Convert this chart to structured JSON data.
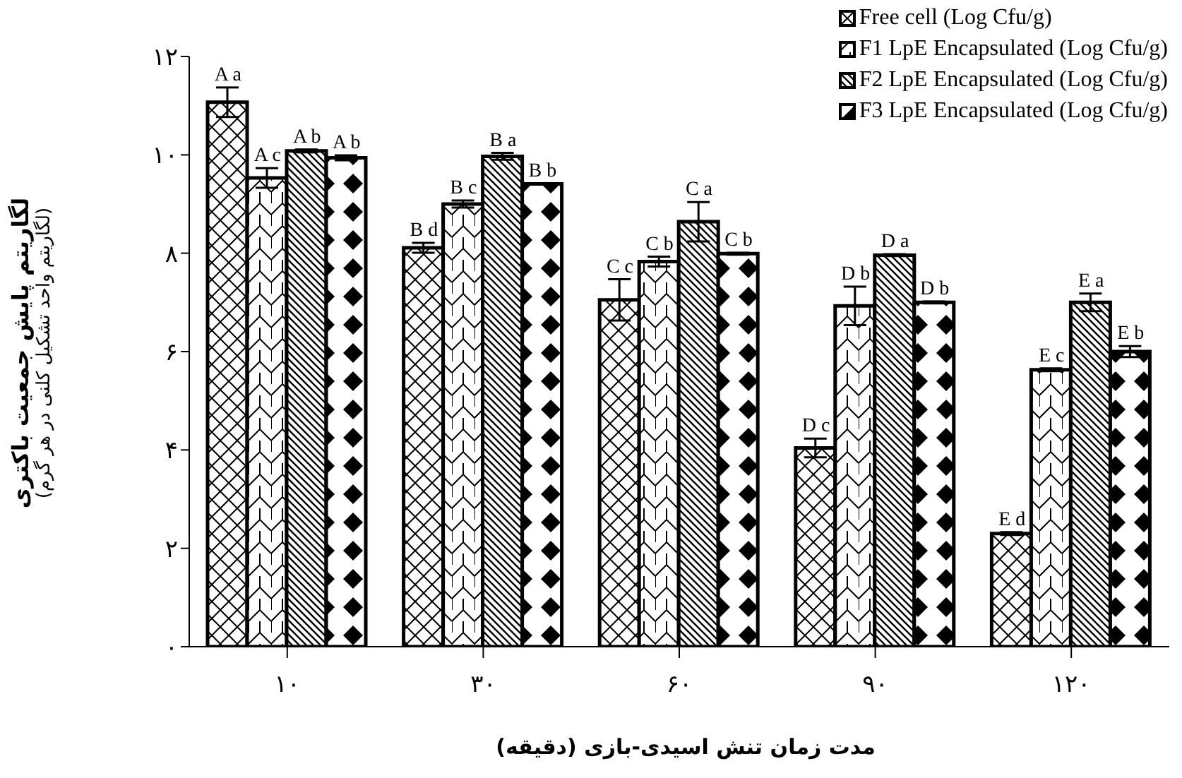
{
  "chart_data": {
    "type": "bar",
    "xlabel": "مدت زمان تنش اسیدی-بازی (دقیقه)",
    "ylabel": "لگاریتم پایش جمعیت باکتری\n(لگاریتم واحد تشکیل کلنی در هر گرم)",
    "categories": [
      "۱۰",
      "۳۰",
      "۶۰",
      "۹۰",
      "۱۲۰"
    ],
    "ylim": [
      0,
      12
    ],
    "yticks": [
      {
        "value": 0,
        "label": "۰"
      },
      {
        "value": 2,
        "label": "۲"
      },
      {
        "value": 4,
        "label": "۴"
      },
      {
        "value": 6,
        "label": "۶"
      },
      {
        "value": 8,
        "label": "۸"
      },
      {
        "value": 10,
        "label": "۱۰"
      },
      {
        "value": 12,
        "label": "۱۲"
      }
    ],
    "grid": false,
    "legend": "top right",
    "series": [
      {
        "name": "Free cell (Log Cfu/g)",
        "color": "#000000",
        "values": [
          11.07,
          8.11,
          7.05,
          4.04,
          2.3
        ],
        "errors": [
          0.3,
          0.1,
          0.42,
          0.19,
          0.03
        ],
        "value_labels": [
          "A a",
          "B d",
          "C c",
          "D c",
          "E d"
        ]
      },
      {
        "name": "F1 LpE Encapsulated (Log Cfu/g)",
        "color": "#000000",
        "values": [
          9.53,
          9.0,
          7.83,
          6.93,
          5.63
        ],
        "errors": [
          0.2,
          0.07,
          0.1,
          0.39,
          0.03
        ],
        "value_labels": [
          "A c",
          "B c",
          "C b",
          "D b",
          "E c"
        ]
      },
      {
        "name": "F2 LpE Encapsulated (Log Cfu/g)",
        "color": "#000000",
        "values": [
          10.08,
          9.97,
          8.64,
          7.96,
          7.0
        ],
        "errors": [
          0.03,
          0.07,
          0.4,
          0.02,
          0.18
        ],
        "value_labels": [
          "A b",
          "B a",
          "C a",
          "D a",
          "E a"
        ]
      },
      {
        "name": "F3 LpE Encapsulated (Log Cfu/g)",
        "color": "#000000",
        "values": [
          9.94,
          9.41,
          7.99,
          7.0,
          6.0
        ],
        "errors": [
          0.05,
          null,
          0.02,
          0.02,
          0.11
        ],
        "value_labels": [
          "A b",
          "B b",
          "C b",
          "D b",
          "E b"
        ]
      }
    ]
  }
}
